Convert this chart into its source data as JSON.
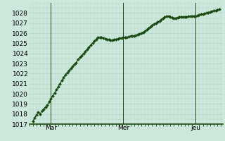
{
  "bg_color": "#cce8dc",
  "plot_bg_color": "#cce8dc",
  "grid_color": "#b0d4c0",
  "line_color": "#1a4a10",
  "marker_color": "#1a4a10",
  "ylim": [
    1017,
    1029
  ],
  "yticks": [
    1017,
    1018,
    1019,
    1020,
    1021,
    1022,
    1023,
    1024,
    1025,
    1026,
    1027,
    1028
  ],
  "xtick_labels": [
    "Mar",
    "Mer",
    "Jeu"
  ],
  "xtick_positions": [
    10,
    50,
    90
  ],
  "total_points": 120,
  "vline_positions": [
    10,
    50,
    90
  ],
  "y_values": [
    1017.3,
    1017.6,
    1017.9,
    1018.2,
    1018.0,
    1018.3,
    1018.5,
    1018.7,
    1018.9,
    1019.2,
    1019.5,
    1019.8,
    1020.1,
    1020.4,
    1020.7,
    1021.0,
    1021.3,
    1021.6,
    1021.9,
    1022.1,
    1022.3,
    1022.5,
    1022.7,
    1022.9,
    1023.1,
    1023.4,
    1023.6,
    1023.8,
    1024.0,
    1024.2,
    1024.4,
    1024.6,
    1024.8,
    1025.0,
    1025.2,
    1025.4,
    1025.55,
    1025.6,
    1025.55,
    1025.5,
    1025.45,
    1025.4,
    1025.35,
    1025.3,
    1025.3,
    1025.35,
    1025.4,
    1025.45,
    1025.5,
    1025.5,
    1025.55,
    1025.6,
    1025.6,
    1025.65,
    1025.7,
    1025.7,
    1025.75,
    1025.8,
    1025.85,
    1025.9,
    1026.0,
    1026.1,
    1026.2,
    1026.35,
    1026.5,
    1026.65,
    1026.8,
    1026.9,
    1027.0,
    1027.1,
    1027.2,
    1027.35,
    1027.5,
    1027.6,
    1027.65,
    1027.65,
    1027.6,
    1027.55,
    1027.5,
    1027.5,
    1027.55,
    1027.6,
    1027.6,
    1027.6,
    1027.6,
    1027.6,
    1027.65,
    1027.65,
    1027.7,
    1027.7,
    1027.7,
    1027.75,
    1027.8,
    1027.85,
    1027.9,
    1027.95,
    1028.0,
    1028.05,
    1028.1,
    1028.15,
    1028.2,
    1028.25,
    1028.3,
    1028.35
  ],
  "axis_line_color": "#1a4a10",
  "tick_fontsize": 6.5,
  "marker_size": 2.2,
  "line_width": 0.9,
  "n_xgrid": 30
}
